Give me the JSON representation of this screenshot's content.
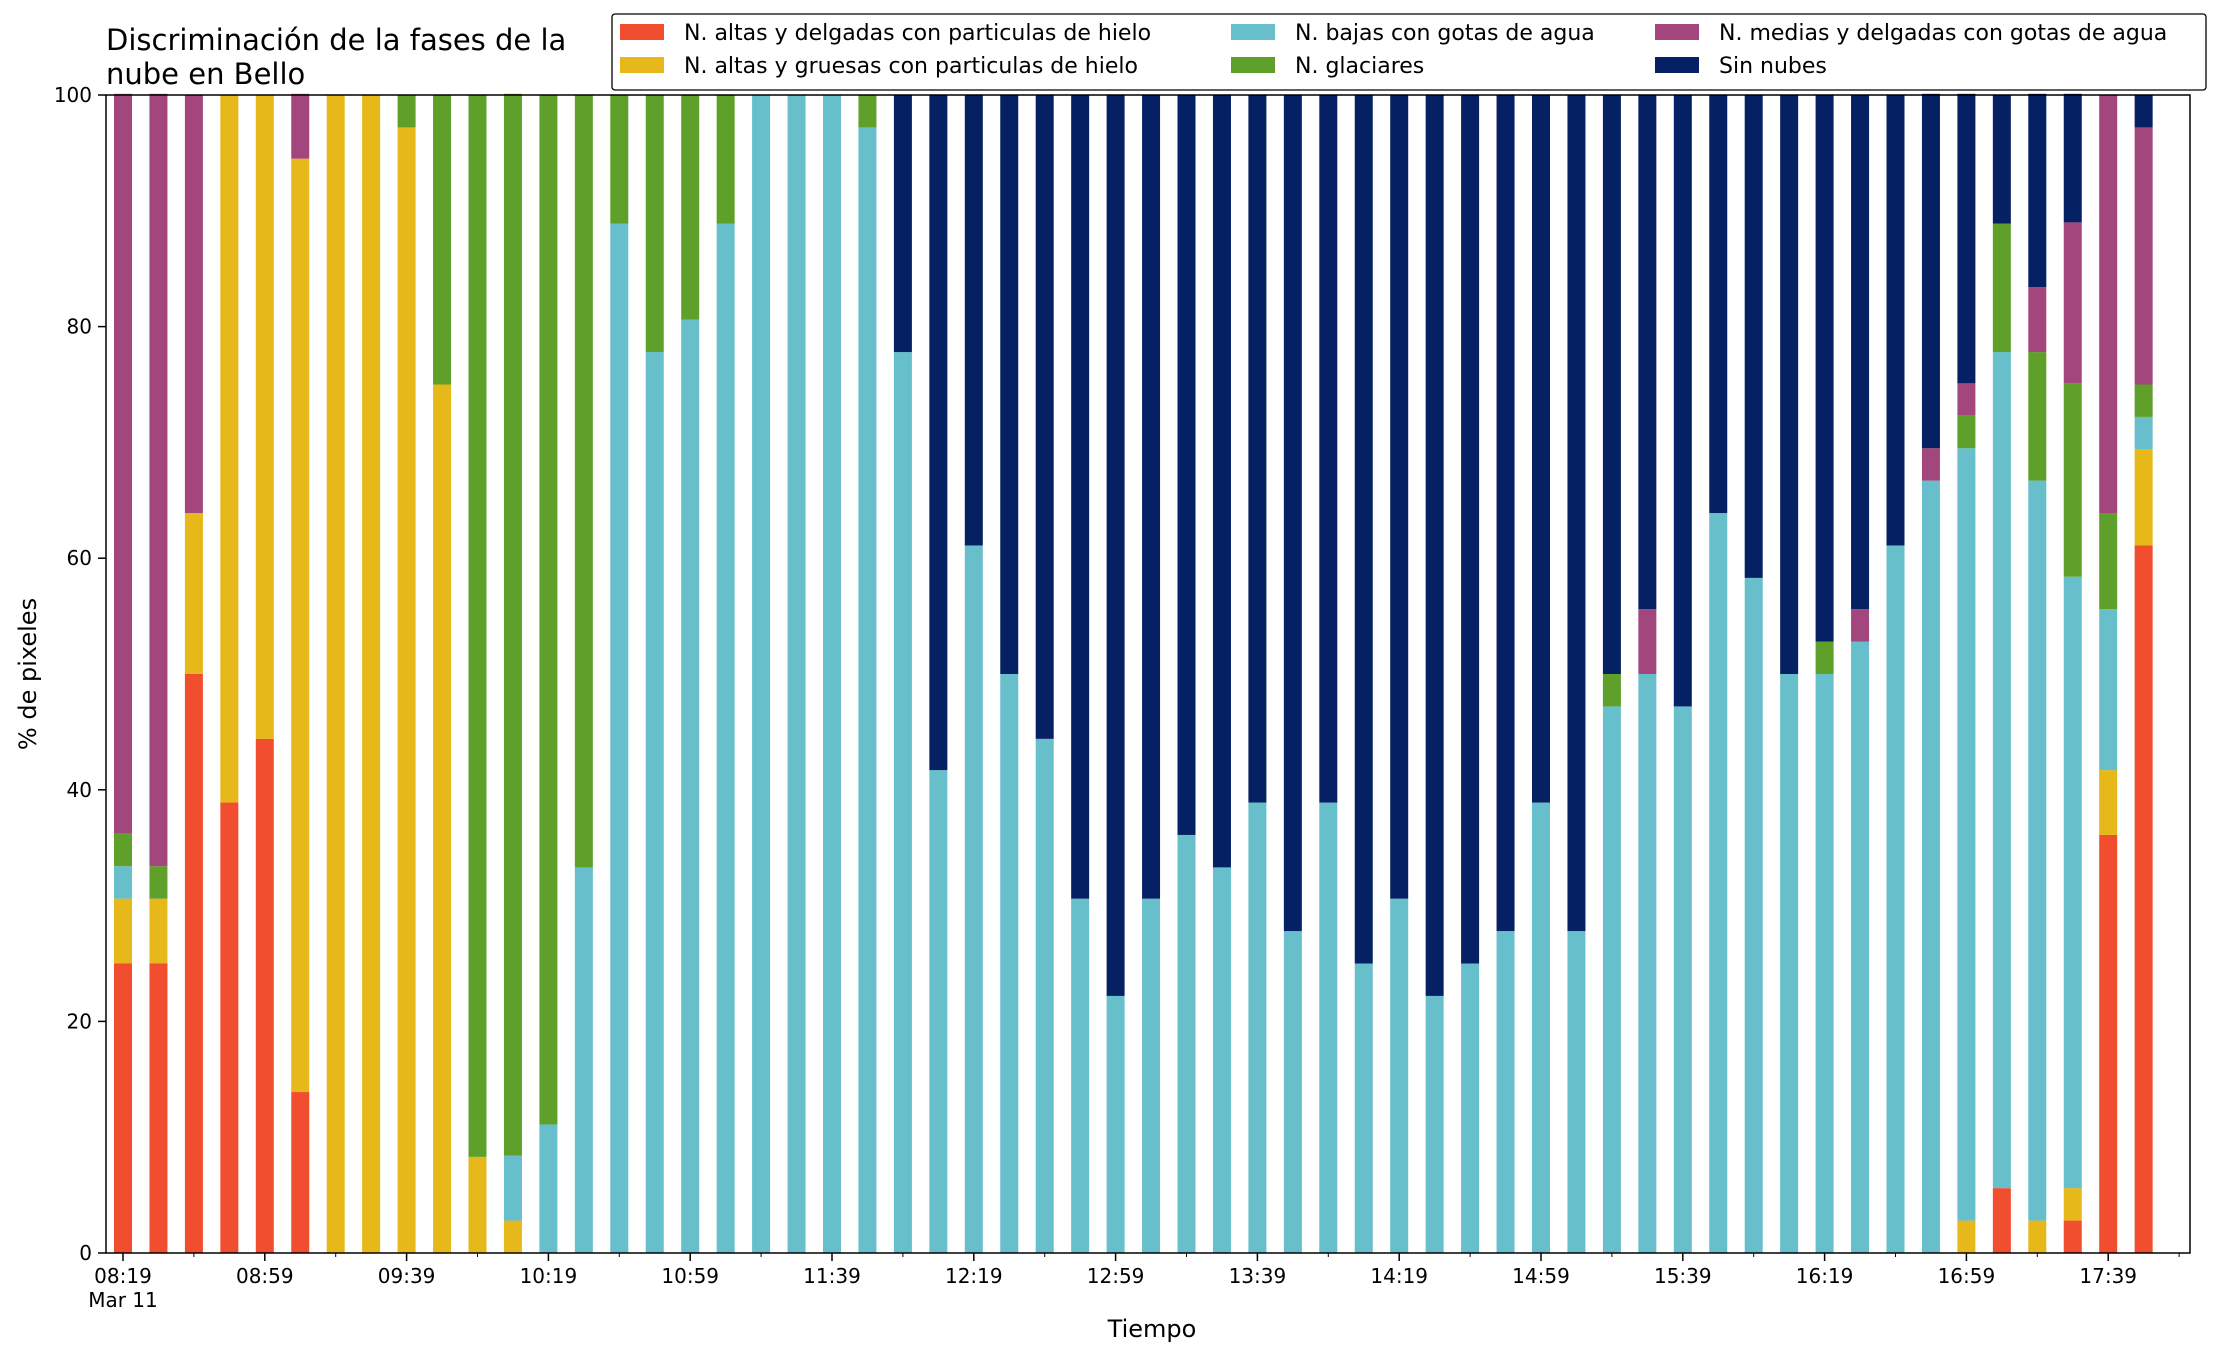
{
  "chart_data": {
    "type": "bar",
    "stacked": true,
    "title_lines": [
      "Discriminación de la fases de la",
      "nube en Bello"
    ],
    "xlabel": "Tiempo",
    "ylabel": "% de pixeles",
    "ylim": [
      0,
      100
    ],
    "yticks": [
      "0",
      "20",
      "40",
      "60",
      "80",
      "100"
    ],
    "xtick_labels": [
      "08:19",
      "08:59",
      "09:39",
      "10:19",
      "10:59",
      "11:39",
      "12:19",
      "12:59",
      "13:39",
      "14:19",
      "14:59",
      "15:39",
      "16:19",
      "16:59",
      "17:39"
    ],
    "xtick_sublabel": "Mar 11",
    "grid": false,
    "legend_position": "top-right",
    "categories": [
      "08:19",
      "08:29",
      "08:39",
      "08:49",
      "08:59",
      "09:09",
      "09:19",
      "09:29",
      "09:39",
      "09:49",
      "09:59",
      "10:09",
      "10:19",
      "10:29",
      "10:39",
      "10:49",
      "10:59",
      "11:09",
      "11:19",
      "11:29",
      "11:39",
      "11:49",
      "11:59",
      "12:09",
      "12:19",
      "12:29",
      "12:39",
      "12:49",
      "12:59",
      "13:09",
      "13:19",
      "13:29",
      "13:39",
      "13:49",
      "13:59",
      "14:09",
      "14:19",
      "14:29",
      "14:39",
      "14:49",
      "14:59",
      "15:09",
      "15:19",
      "15:29",
      "15:39",
      "15:49",
      "15:59",
      "16:09",
      "16:19",
      "16:29",
      "16:39",
      "16:49",
      "16:59",
      "17:09",
      "17:19",
      "17:29",
      "17:39",
      "17:49"
    ],
    "series": [
      {
        "name": "N. altas y delgadas con particulas de hielo",
        "color": "#f04e2e",
        "values": [
          25,
          25,
          50,
          38.9,
          44.4,
          13.9,
          0,
          0,
          0,
          0,
          0,
          0,
          0,
          0,
          0,
          0,
          0,
          0,
          0,
          0,
          0,
          0,
          0,
          0,
          0,
          0,
          0,
          0,
          0,
          0,
          0,
          0,
          0,
          0,
          0,
          0,
          0,
          0,
          0,
          0,
          0,
          0,
          0,
          0,
          0,
          0,
          0,
          0,
          0,
          0,
          0,
          0,
          0,
          5.6,
          0,
          2.8,
          36.1,
          61.1
        ]
      },
      {
        "name": "N. altas y gruesas con particulas de hielo",
        "color": "#e6b819",
        "values": [
          5.6,
          5.6,
          13.9,
          61.1,
          55.6,
          80.6,
          100,
          100,
          97.2,
          75,
          8.3,
          2.8,
          0,
          0,
          0,
          0,
          0,
          0,
          0,
          0,
          0,
          0,
          0,
          0,
          0,
          0,
          0,
          0,
          0,
          0,
          0,
          0,
          0,
          0,
          0,
          0,
          0,
          0,
          0,
          0,
          0,
          0,
          0,
          0,
          0,
          0,
          0,
          0,
          0,
          0,
          0,
          0,
          2.8,
          0,
          2.8,
          2.8,
          5.6,
          8.3
        ]
      },
      {
        "name": "N. bajas con gotas de agua",
        "color": "#66bfca",
        "values": [
          2.8,
          0,
          0,
          0,
          0,
          0,
          0,
          0,
          0,
          0,
          0,
          5.6,
          11.1,
          33.3,
          88.9,
          77.8,
          80.6,
          88.9,
          100,
          100,
          100,
          97.2,
          77.8,
          41.7,
          61.1,
          50,
          44.4,
          30.6,
          22.2,
          30.6,
          36.1,
          33.3,
          38.9,
          27.8,
          38.9,
          25,
          30.6,
          22.2,
          25,
          27.8,
          38.9,
          27.8,
          47.2,
          50,
          47.2,
          63.9,
          58.3,
          50,
          50,
          52.8,
          61.1,
          66.7,
          66.7,
          72.2,
          63.9,
          52.8,
          13.9,
          2.8
        ]
      },
      {
        "name": "N. glaciares",
        "color": "#5ea02a",
        "values": [
          2.8,
          2.8,
          0,
          0,
          0,
          0,
          0,
          0,
          2.8,
          25,
          91.7,
          91.7,
          88.9,
          66.7,
          11.1,
          22.2,
          19.4,
          11.1,
          0,
          0,
          0,
          2.8,
          0,
          0,
          0,
          0,
          0,
          0,
          0,
          0,
          0,
          0,
          0,
          0,
          0,
          0,
          0,
          0,
          0,
          0,
          0,
          0,
          2.8,
          0,
          0,
          0,
          0,
          0,
          2.8,
          0,
          0,
          0,
          2.8,
          11.1,
          11.1,
          16.7,
          8.3,
          2.8
        ]
      },
      {
        "name": "N. medias y delgadas con gotas de agua",
        "color": "#a3467d",
        "values": [
          63.9,
          66.7,
          36.1,
          0,
          0,
          5.6,
          0,
          0,
          0,
          0,
          0,
          0,
          0,
          0,
          0,
          0,
          0,
          0,
          0,
          0,
          0,
          0,
          0,
          0,
          0,
          0,
          0,
          0,
          0,
          0,
          0,
          0,
          0,
          0,
          0,
          0,
          0,
          0,
          0,
          0,
          0,
          0,
          0,
          5.6,
          0,
          0,
          0,
          0,
          0,
          2.8,
          0,
          2.8,
          2.8,
          0,
          5.6,
          13.9,
          36.1,
          22.2
        ]
      },
      {
        "name": "Sin nubes",
        "color": "#052063",
        "values": [
          0,
          0,
          0,
          0,
          0,
          0,
          0,
          0,
          0,
          0,
          0,
          0,
          0,
          0,
          0,
          0,
          0,
          0,
          0,
          0,
          0,
          0,
          22.2,
          58.3,
          38.9,
          50,
          55.6,
          69.4,
          77.8,
          69.4,
          63.9,
          66.7,
          61.1,
          72.2,
          61.1,
          75,
          69.4,
          77.8,
          75,
          72.2,
          61.1,
          72.2,
          50,
          44.4,
          52.8,
          36.1,
          41.7,
          50,
          47.2,
          44.4,
          38.9,
          30.6,
          25,
          11.1,
          16.7,
          11.1,
          0,
          2.8
        ]
      }
    ]
  }
}
